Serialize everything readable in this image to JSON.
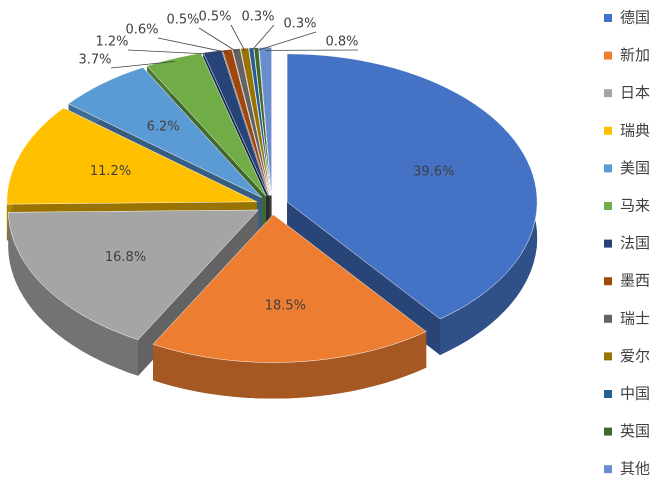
{
  "chart_data": {
    "type": "pie",
    "categories": [
      "德国",
      "新加",
      "日本",
      "瑞典",
      "美国",
      "马来",
      "法国",
      "墨西",
      "瑞士",
      "爱尔",
      "中国",
      "英国",
      "其他"
    ],
    "values": [
      39.6,
      18.5,
      16.8,
      11.2,
      6.2,
      3.7,
      1.2,
      0.6,
      0.5,
      0.5,
      0.3,
      0.3,
      0.8
    ],
    "value_labels": [
      "39.6%",
      "18.5%",
      "16.8%",
      "11.2%",
      "6.2%",
      "3.7%",
      "1.2%",
      "0.6%",
      "0.5%",
      "0.5%",
      "0.3%",
      "0.3%",
      "0.8%"
    ],
    "colors": [
      "#4472c4",
      "#ed7d31",
      "#a5a5a5",
      "#ffc000",
      "#5b9bd5",
      "#70ad47",
      "#264478",
      "#9e480e",
      "#636363",
      "#997300",
      "#255e91",
      "#43682b",
      "#698ed0"
    ],
    "legend": "right"
  }
}
